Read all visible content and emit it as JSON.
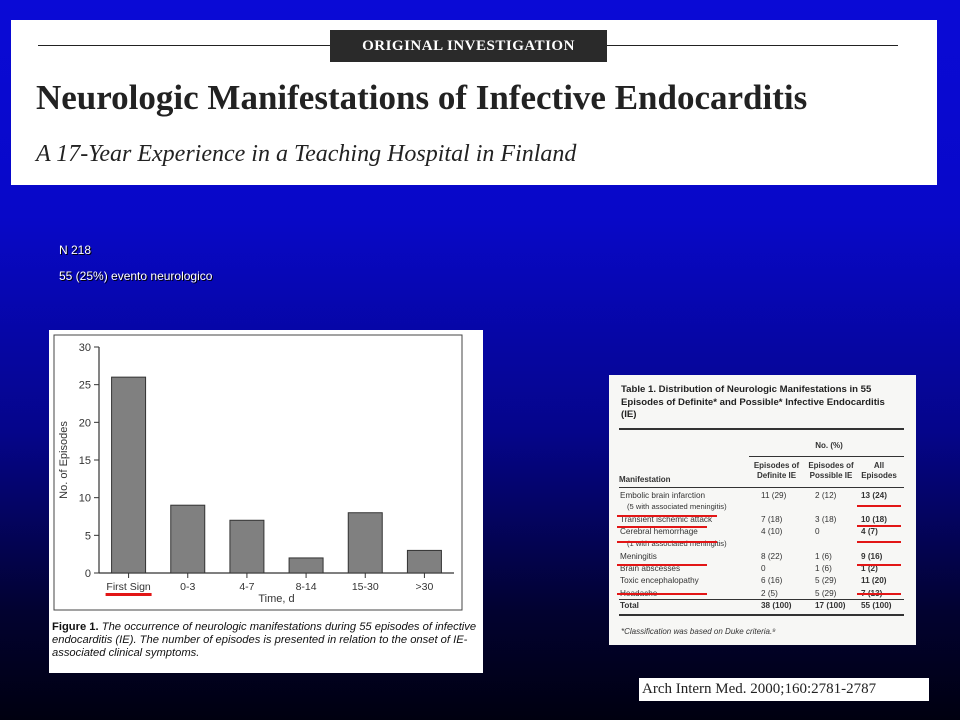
{
  "header": {
    "tag": "ORIGINAL INVESTIGATION",
    "title": "Neurologic Manifestations of Infective Endocarditis",
    "subtitle": "A 17-Year Experience in a Teaching Hospital in Finland"
  },
  "info": {
    "line1": "N 218",
    "line2": "55 (25%) evento neurologico"
  },
  "figure": {
    "caption_label": "Figure 1.",
    "caption_text": " The occurrence of neurologic manifestations during 55 episodes of infective endocarditis (IE). The number of episodes is presented in relation to the onset of IE-associated clinical symptoms."
  },
  "chart_data": {
    "type": "bar",
    "categories": [
      "First Sign",
      "0-3",
      "4-7",
      "8-14",
      "15-30",
      ">30"
    ],
    "values": [
      26,
      9,
      7,
      2,
      8,
      3
    ],
    "xlabel": "Time, d",
    "ylabel": "No. of Episodes",
    "ylim": [
      0,
      30
    ],
    "yticks": [
      0,
      5,
      10,
      15,
      20,
      25,
      30
    ],
    "bar_color": "#808080",
    "highlight_color": "#e21616",
    "highlighted_category": "First Sign"
  },
  "table": {
    "title": "Table 1. Distribution of Neurologic Manifestations in 55 Episodes of Definite* and Possible* Infective Endocarditis (IE)",
    "group_header": "No. (%)",
    "headers": [
      "Manifestation",
      "Episodes of Definite IE",
      "Episodes of Possible IE",
      "All Episodes"
    ],
    "rows": [
      {
        "name": "Embolic brain infarction",
        "d": "11 (29)",
        "p": "2 (12)",
        "a": "13 (24)"
      },
      {
        "name": "(5 with associated meningitis)",
        "d": "",
        "p": "",
        "a": ""
      },
      {
        "name": "Transient ischemic attack",
        "d": "7 (18)",
        "p": "3 (18)",
        "a": "10 (18)"
      },
      {
        "name": "Cerebral hemorrhage",
        "d": "4 (10)",
        "p": "0",
        "a": "4 (7)"
      },
      {
        "name": "(1 with associated meningitis)",
        "d": "",
        "p": "",
        "a": ""
      },
      {
        "name": "Meningitis",
        "d": "8 (22)",
        "p": "1 (6)",
        "a": "9 (16)"
      },
      {
        "name": "Brain abscesses",
        "d": "0",
        "p": "1 (6)",
        "a": "1 (2)"
      },
      {
        "name": "Toxic encephalopathy",
        "d": "6 (16)",
        "p": "5 (29)",
        "a": "11 (20)"
      },
      {
        "name": "Headache",
        "d": "2 (5)",
        "p": "5 (29)",
        "a": "7 (13)"
      },
      {
        "name": "Total",
        "d": "38 (100)",
        "p": "17 (100)",
        "a": "55 (100)"
      }
    ],
    "footnote": "*Classification was based on Duke criteria.⁹"
  },
  "citation": "Arch Intern Med. 2000;160:2781-2787"
}
